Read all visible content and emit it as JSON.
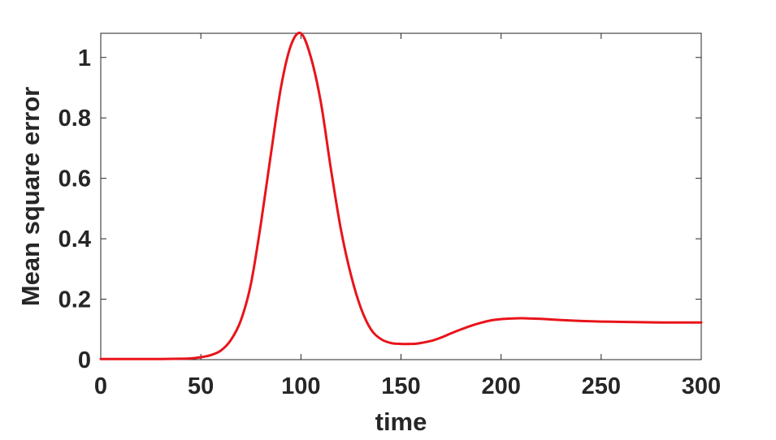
{
  "chart_data": {
    "type": "line",
    "xlabel": "time",
    "ylabel": "Mean square error",
    "xlim": [
      0,
      300
    ],
    "ylim": [
      0,
      1.08
    ],
    "xticks": [
      0,
      50,
      100,
      150,
      200,
      250,
      300
    ],
    "yticks": [
      0,
      0.2,
      0.4,
      0.6,
      0.8,
      1
    ],
    "xtick_labels": [
      "0",
      "50",
      "100",
      "150",
      "200",
      "250",
      "300"
    ],
    "ytick_labels": [
      "0",
      "0.2",
      "0.4",
      "0.6",
      "0.8",
      "1"
    ],
    "grid": false,
    "box": true,
    "series": [
      {
        "color": "#e8141a",
        "x": [
          0,
          10,
          20,
          30,
          40,
          45,
          50,
          55,
          60,
          65,
          70,
          75,
          80,
          85,
          90,
          95,
          100,
          105,
          110,
          115,
          120,
          125,
          130,
          135,
          140,
          145,
          150,
          155,
          158,
          165,
          170,
          175,
          180,
          185,
          190,
          195,
          200,
          205,
          210,
          215,
          220,
          230,
          240,
          250,
          260,
          270,
          280,
          290,
          300
        ],
        "y": [
          0.002,
          0.002,
          0.002,
          0.002,
          0.003,
          0.004,
          0.008,
          0.015,
          0.03,
          0.065,
          0.13,
          0.25,
          0.45,
          0.68,
          0.9,
          1.04,
          1.08,
          1.0,
          0.85,
          0.63,
          0.43,
          0.28,
          0.17,
          0.1,
          0.068,
          0.055,
          0.052,
          0.052,
          0.053,
          0.062,
          0.073,
          0.087,
          0.1,
          0.112,
          0.122,
          0.13,
          0.134,
          0.136,
          0.137,
          0.136,
          0.135,
          0.131,
          0.128,
          0.126,
          0.125,
          0.124,
          0.123,
          0.123,
          0.123
        ]
      }
    ]
  }
}
